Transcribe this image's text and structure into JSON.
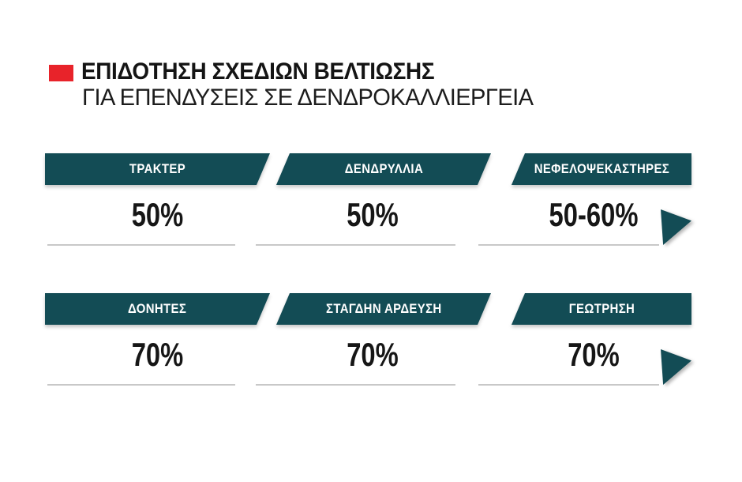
{
  "title_block": {
    "title": "ΕΠΙΔΟΤΗΣΗ ΣΧΕΔΙΩΝ ΒΕΛΤΙΩΣΗΣ",
    "subtitle": "ΓΙΑ ΕΠΕΝΔΥΣΕΙΣ ΣΕ ΔΕΝΔΡΟΚΑΛΛΙΕΡΓΕΙΑ"
  },
  "colors": {
    "band_teal": "#134c55",
    "bullet_red": "#e8232a",
    "text_dark": "#141414",
    "underline_gray": "#c8c8c8",
    "background": "#ffffff"
  },
  "chart_data": {
    "type": "table",
    "title": "ΕΠΙΔΟΤΗΣΗ ΣΧΕΔΙΩΝ ΒΕΛΤΙΩΣΗΣ",
    "subtitle": "ΓΙΑ ΕΠΕΝΔΥΣΕΙΣ ΣΕ ΔΕΝΔΡΟΚΑΛΛΙΕΡΓΕΙΑ",
    "columns": 3,
    "rows": 2,
    "legend_position": "none",
    "items": [
      {
        "category": "ΤΡΑΚΤΕΡ",
        "subsidy": "50%"
      },
      {
        "category": "ΔΕΝΔΡΥΛΛΙΑ",
        "subsidy": "50%"
      },
      {
        "category": "ΝΕΦΕΛΟΨΕΚΑΣΤΗΡΕΣ",
        "subsidy": "50-60%"
      },
      {
        "category": "ΔΟΝΗΤΕΣ",
        "subsidy": "70%"
      },
      {
        "category": "ΣΤΑΓΔΗΝ ΑΡΔΕΥΣΗ",
        "subsidy": "70%"
      },
      {
        "category": "ΓΕΩΤΡΗΣΗ",
        "subsidy": "70%"
      }
    ]
  }
}
